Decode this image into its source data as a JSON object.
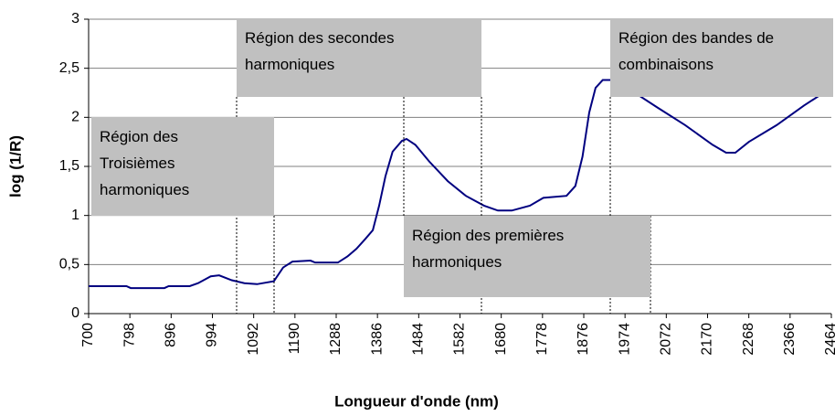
{
  "chart_data": {
    "type": "line",
    "xlabel": "Longueur d'onde (nm)",
    "ylabel": "log (1/R)",
    "xlim": [
      700,
      2464
    ],
    "xticks": [
      700,
      798,
      896,
      994,
      1092,
      1190,
      1288,
      1386,
      1484,
      1582,
      1680,
      1778,
      1876,
      1974,
      2072,
      2170,
      2268,
      2366,
      2464
    ],
    "ylim": [
      0,
      3
    ],
    "yticks": [
      0,
      {
        "value": 0.5,
        "label": "0,5"
      },
      1,
      {
        "value": 1.5,
        "label": "1,5"
      },
      2,
      {
        "value": 2.5,
        "label": "2,5"
      },
      3
    ],
    "grid": true,
    "series": [
      {
        "color": "#000080",
        "x": [
          700,
          790,
          800,
          880,
          890,
          940,
          960,
          990,
          1010,
          1040,
          1070,
          1100,
          1140,
          1162,
          1184,
          1227,
          1238,
          1292,
          1314,
          1336,
          1357,
          1375,
          1390,
          1405,
          1422,
          1444,
          1455,
          1476,
          1509,
          1553,
          1596,
          1639,
          1672,
          1705,
          1748,
          1780,
          1835,
          1856,
          1873,
          1889,
          1904,
          1921,
          1960,
          1990,
          2008,
          2051,
          2117,
          2182,
          2214,
          2236,
          2268,
          2334,
          2399,
          2442,
          2464
        ],
        "values": [
          0.28,
          0.28,
          0.26,
          0.26,
          0.28,
          0.28,
          0.31,
          0.38,
          0.39,
          0.34,
          0.31,
          0.3,
          0.33,
          0.47,
          0.53,
          0.54,
          0.52,
          0.52,
          0.58,
          0.66,
          0.76,
          0.85,
          1.1,
          1.4,
          1.65,
          1.76,
          1.78,
          1.72,
          1.55,
          1.35,
          1.2,
          1.1,
          1.05,
          1.05,
          1.1,
          1.18,
          1.2,
          1.3,
          1.6,
          2.05,
          2.3,
          2.38,
          2.38,
          2.3,
          2.22,
          2.1,
          1.92,
          1.72,
          1.64,
          1.64,
          1.75,
          1.92,
          2.12,
          2.24,
          2.32
        ]
      }
    ],
    "annotations": [
      {
        "lines": [
          "Région des",
          "Troisièmes",
          "harmoniques"
        ]
      },
      {
        "lines": [
          "Région des secondes",
          "harmoniques"
        ]
      },
      {
        "lines": [
          "Région des premières",
          "harmoniques"
        ]
      },
      {
        "lines": [
          "Région des bandes de",
          "combinaisons"
        ]
      }
    ]
  }
}
